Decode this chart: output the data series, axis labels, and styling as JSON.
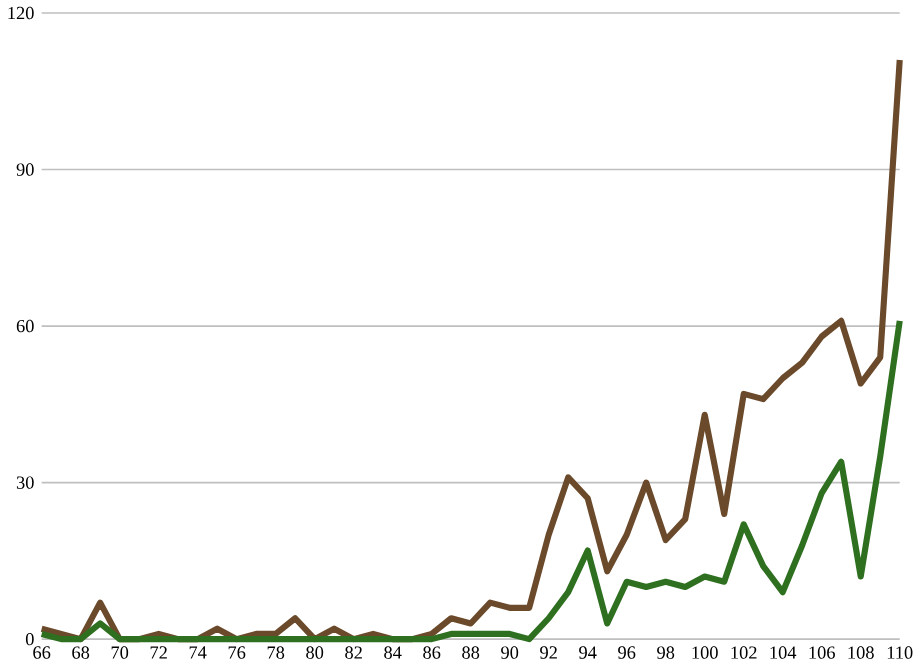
{
  "chart_data": {
    "type": "line",
    "x": [
      66,
      67,
      68,
      69,
      70,
      71,
      72,
      73,
      74,
      75,
      76,
      77,
      78,
      79,
      80,
      81,
      82,
      83,
      84,
      85,
      86,
      87,
      88,
      89,
      90,
      91,
      92,
      93,
      94,
      95,
      96,
      97,
      98,
      99,
      100,
      101,
      102,
      103,
      104,
      105,
      106,
      107,
      108,
      109,
      110
    ],
    "series": [
      {
        "color": "#6b4a2b",
        "values": [
          2,
          1,
          0,
          7,
          0,
          0,
          1,
          0,
          0,
          2,
          0,
          1,
          1,
          4,
          0,
          2,
          0,
          1,
          0,
          0,
          1,
          4,
          3,
          7,
          6,
          6,
          20,
          31,
          27,
          13,
          20,
          30,
          19,
          23,
          43,
          24,
          47,
          46,
          50,
          53,
          58,
          61,
          49,
          54,
          111
        ]
      },
      {
        "color": "#2e7020",
        "values": [
          1,
          0,
          0,
          3,
          0,
          0,
          0,
          0,
          0,
          0,
          0,
          0,
          0,
          0,
          0,
          0,
          0,
          0,
          0,
          0,
          0,
          1,
          1,
          1,
          1,
          0,
          4,
          9,
          17,
          3,
          11,
          10,
          11,
          10,
          12,
          11,
          22,
          14,
          9,
          18,
          28,
          34,
          12,
          35,
          61
        ]
      }
    ],
    "xlim": [
      66,
      110
    ],
    "xticks": [
      66,
      68,
      70,
      72,
      74,
      76,
      78,
      80,
      82,
      84,
      86,
      88,
      90,
      92,
      94,
      96,
      98,
      100,
      102,
      104,
      106,
      108,
      110
    ],
    "ylim": [
      0,
      120
    ],
    "yticks": [
      0,
      30,
      60,
      90,
      120
    ],
    "grid": "y",
    "marker": "none",
    "line_style": "solid"
  }
}
